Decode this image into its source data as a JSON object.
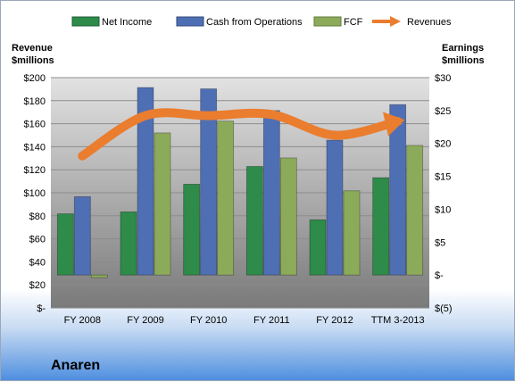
{
  "company_name": "Anaren",
  "colors": {
    "net_income": "#2e8b4a",
    "cash_from_operations": "#4f6fb5",
    "fcf": "#8cab5a",
    "revenues": "#ea7d2e"
  },
  "chart_data": {
    "type": "bar",
    "categories": [
      "FY 2008",
      "FY 2009",
      "FY 2010",
      "FY 2011",
      "FY 2012",
      "TTM 3-2013"
    ],
    "left_axis": {
      "title_line1": "Revenue",
      "title_line2": "$millions",
      "ylim": [
        0,
        200
      ],
      "ticks": [
        0,
        20,
        40,
        60,
        80,
        100,
        120,
        140,
        160,
        180,
        200
      ],
      "tick_labels": [
        "$-",
        "$20",
        "$40",
        "$60",
        "$80",
        "$100",
        "$120",
        "$140",
        "$160",
        "$180",
        "$200"
      ]
    },
    "right_axis": {
      "title_line1": "Earnings",
      "title_line2": "$millions",
      "ylim": [
        -5,
        30
      ],
      "ticks": [
        -5,
        0,
        5,
        10,
        15,
        20,
        25,
        30
      ],
      "tick_labels": [
        "$(5)",
        "$-",
        "$5",
        "$10",
        "$15",
        "$20",
        "$25",
        "$30"
      ]
    },
    "series": [
      {
        "name": "Net Income",
        "type": "bar",
        "axis": "right",
        "values": [
          9.3,
          9.6,
          13.8,
          16.5,
          8.4,
          14.8
        ]
      },
      {
        "name": "Cash from Operations",
        "type": "bar",
        "axis": "right",
        "values": [
          11.9,
          28.5,
          28.3,
          25.0,
          20.5,
          25.9
        ]
      },
      {
        "name": "FCF",
        "type": "bar",
        "axis": "right",
        "values": [
          -0.4,
          21.6,
          23.4,
          17.8,
          12.8,
          19.7
        ]
      },
      {
        "name": "Revenues",
        "type": "line",
        "axis": "left",
        "values": [
          132,
          167,
          167,
          168,
          150,
          162
        ]
      }
    ],
    "legend_position": "top",
    "grid": true
  }
}
